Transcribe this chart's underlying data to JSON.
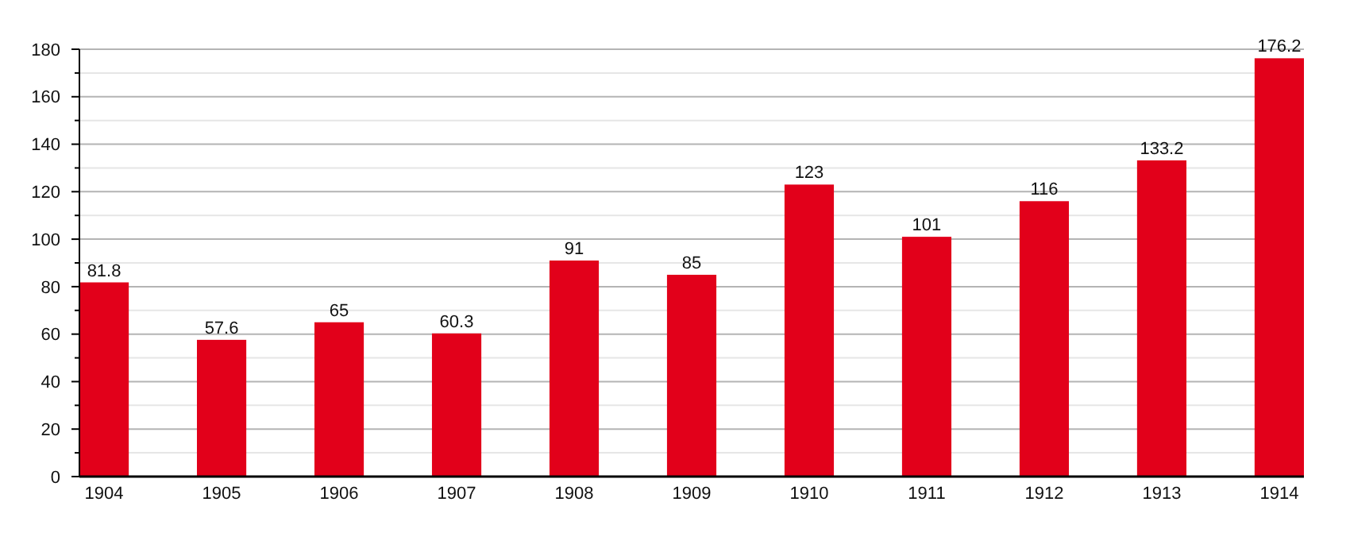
{
  "chart_data": {
    "type": "bar",
    "categories": [
      "1904",
      "1905",
      "1906",
      "1907",
      "1908",
      "1909",
      "1910",
      "1911",
      "1912",
      "1913",
      "1914"
    ],
    "values": [
      81.8,
      57.6,
      65,
      60.3,
      91,
      85,
      123,
      101,
      116,
      133.2,
      176.2
    ],
    "color": "#e2001a",
    "ylim": [
      0,
      180
    ],
    "yticks": [
      0,
      {
        "value": 10,
        "label": null
      },
      20,
      {
        "value": 30,
        "label": null
      },
      40,
      {
        "value": 50,
        "label": null
      },
      60,
      {
        "value": 70,
        "label": null
      },
      80,
      {
        "value": 90,
        "label": null
      },
      100,
      {
        "value": 110,
        "label": null
      },
      120,
      {
        "value": 130,
        "label": null
      },
      140,
      {
        "value": 150,
        "label": null
      },
      160,
      {
        "value": 170,
        "label": null
      },
      180
    ],
    "grid": "y",
    "data_labels": true
  }
}
